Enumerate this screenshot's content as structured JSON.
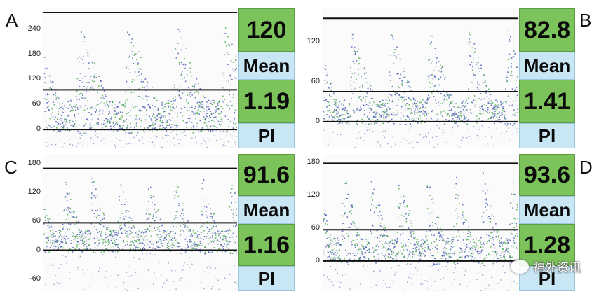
{
  "panels": [
    {
      "letter": "A",
      "y_ticks": [
        "240",
        "180",
        "120",
        "60",
        "0"
      ],
      "value1": "120",
      "label1": "Mean",
      "value2": "1.19",
      "label2": "PI",
      "tick_values": [
        240,
        180,
        120,
        60,
        0
      ],
      "ymax": 290,
      "ymin": -45,
      "peaks": 4,
      "top_line": 280,
      "mid_line": 95,
      "base_line": 0
    },
    {
      "letter": "B",
      "y_ticks": [
        "120",
        "60",
        "0"
      ],
      "value1": "82.8",
      "label1": "Mean",
      "value2": "1.41",
      "label2": "PI",
      "tick_values": [
        120,
        60,
        0
      ],
      "ymax": 170,
      "ymin": -40,
      "peaks": 5,
      "top_line": 155,
      "mid_line": 45,
      "base_line": 0
    },
    {
      "letter": "C",
      "y_ticks": [
        "180",
        "120",
        "60",
        "0",
        "-60"
      ],
      "value1": "91.6",
      "label1": "Mean",
      "value2": "1.16",
      "label2": "PI",
      "tick_values": [
        180,
        120,
        60,
        0,
        -60
      ],
      "ymax": 200,
      "ymin": -85,
      "peaks": 7,
      "top_line": 170,
      "mid_line": 57,
      "base_line": 0
    },
    {
      "letter": "D",
      "y_ticks": [
        "180",
        "120",
        "60",
        "0"
      ],
      "value1": "93.6",
      "label1": "Mean",
      "value2": "1.28",
      "label2": "PI",
      "tick_values": [
        180,
        120,
        60,
        0
      ],
      "ymax": 195,
      "ymin": -55,
      "peaks": 7,
      "top_line": 178,
      "mid_line": 57,
      "base_line": 0
    }
  ],
  "watermark": {
    "text": "神外资讯",
    "icon": "wechat-icon"
  },
  "colors": {
    "value_bg": "#7cc35b",
    "label_bg": "#c9e6f5",
    "dot_blue": "#3a4fb0",
    "dot_green": "#3aa838",
    "line": "#111111"
  }
}
